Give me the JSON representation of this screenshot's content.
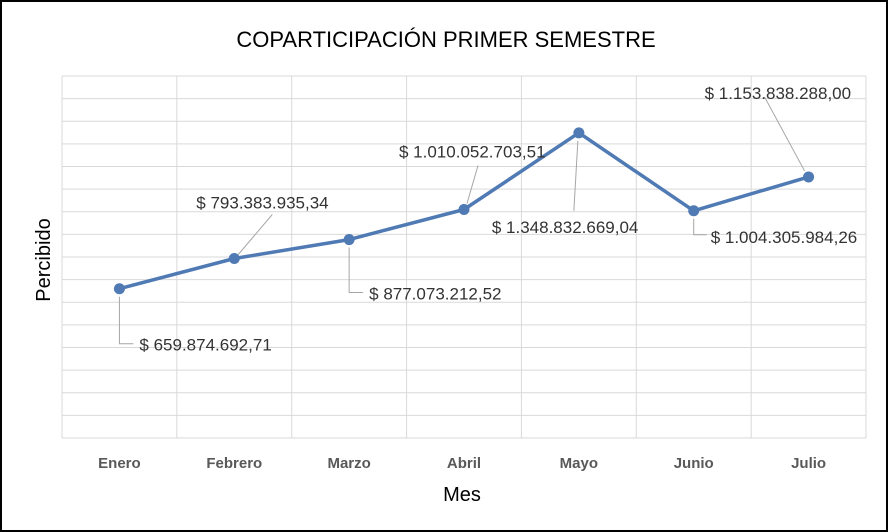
{
  "chart_data": {
    "type": "line",
    "title": "COPARTICIPACIÓN PRIMER SEMESTRE",
    "xlabel": "Mes",
    "ylabel": "Percibido",
    "categories": [
      "Enero",
      "Febrero",
      "Marzo",
      "Abril",
      "Mayo",
      "Junio",
      "Julio"
    ],
    "series": [
      {
        "values": [
          659874692.71,
          793383935.34,
          877073212.52,
          1010052703.51,
          1348832669.04,
          1004305984.26,
          1153838288.0
        ],
        "labels": [
          "$ 659.874.692,71",
          "$ 793.383.935,34",
          "$ 877.073.212,52",
          "$ 1.010.052.703,51",
          "$ 1.348.832.669,04",
          "$ 1.004.305.984,26",
          "$ 1.153.838.288,00"
        ]
      }
    ],
    "ylim": [
      0,
      1600000000
    ],
    "grid": true,
    "legend": "none",
    "colors": {
      "line": "#4f7ab4",
      "grid": "#d9d9d9",
      "leader": "#a6a6a6"
    }
  }
}
